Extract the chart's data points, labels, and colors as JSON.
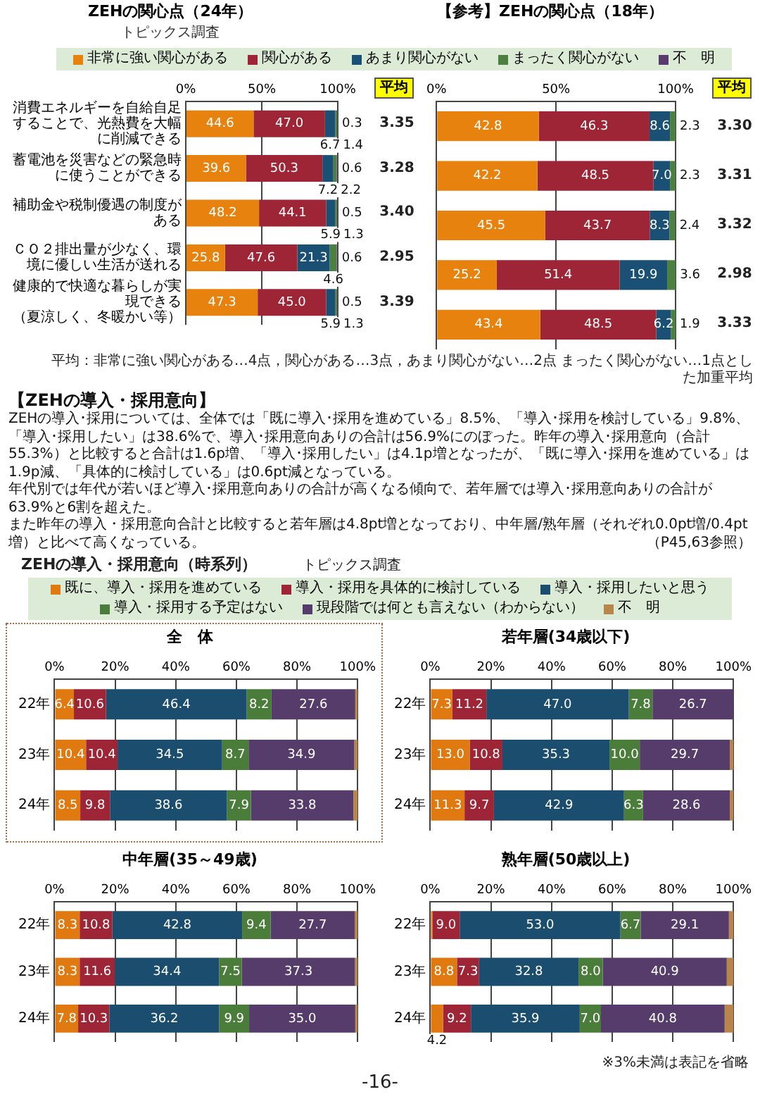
{
  "chart_data": [
    {
      "type": "bar",
      "orientation": "horizontal",
      "stacked": true,
      "title": "ZEHの関心点（24年）",
      "subtitle": "トピックス調査",
      "legend": "top",
      "grid": "x",
      "categories": [
        "消費エネルギーを自給自足することで、光熱費を大幅に削減できる",
        "蓄電池を災害などの緊急時に使うことができる",
        "補助金や税制優遇の制度がある",
        "ＣＯ２排出量が少なく、環境に優しい生活が送れる",
        "健康的で快適な暮らしが実現できる（夏涼しく、冬暖かい等）"
      ],
      "xlim": [
        0,
        100
      ],
      "xticks": [
        {
          "value": 0,
          "label": "0%"
        },
        {
          "value": 50,
          "label": "50%"
        },
        {
          "value": 100,
          "label": "100%"
        }
      ],
      "series": [
        {
          "name": "非常に強い関心がある",
          "color": "#e8820e",
          "values": [
            44.6,
            39.6,
            48.2,
            25.8,
            47.3
          ],
          "value_labels": [
            "44.6",
            "39.6",
            "48.2",
            "25.8",
            "47.3"
          ]
        },
        {
          "name": "関心がある",
          "color": "#9e2536",
          "values": [
            47.0,
            50.3,
            44.1,
            47.6,
            45.0
          ],
          "value_labels": [
            "47.0",
            "50.3",
            "44.1",
            "47.6",
            "45.0"
          ]
        },
        {
          "name": "あまり関心がない",
          "color": "#1b5075",
          "values": [
            6.7,
            7.2,
            5.9,
            21.3,
            5.9
          ],
          "value_labels": [
            "6.7",
            "7.2",
            "5.9",
            "21.3",
            "5.9"
          ]
        },
        {
          "name": "まったく関心がない",
          "color": "#4b8040",
          "values": [
            1.4,
            2.2,
            1.3,
            4.6,
            1.3
          ],
          "value_labels": [
            "1.4",
            "2.2",
            "1.3",
            "4.6",
            "1.3"
          ]
        },
        {
          "name": "不　明",
          "color": "#5b3a6e",
          "values": [
            0.3,
            0.6,
            0.5,
            0.6,
            0.5
          ],
          "value_labels": [
            "0.3",
            "0.6",
            "0.5",
            "0.6",
            "0.5"
          ]
        }
      ],
      "annotations": [
        "平均",
        "3.35",
        "3.28",
        "3.40",
        "2.95",
        "3.39"
      ]
    },
    {
      "type": "bar",
      "orientation": "horizontal",
      "stacked": true,
      "title": "【参考】ZEHの関心点（18年）",
      "grid": "x",
      "tick_labels": "x",
      "categories": [
        "消費エネルギーを自給自足することで、光熱費を大幅に削減できる",
        "蓄電池を災害などの緊急時に使うことができる",
        "補助金や税制優遇の制度がある",
        "ＣＯ２排出量が少なく、環境に優しい生活が送れる",
        "健康的で快適な暮らしが実現できる（夏涼しく、冬暖かい等）"
      ],
      "xlim": [
        0,
        100
      ],
      "xticks": [
        {
          "value": 0,
          "label": "0%"
        },
        {
          "value": 50,
          "label": "50%"
        },
        {
          "value": 100,
          "label": "100%"
        }
      ],
      "series": [
        {
          "color": "#e8820e",
          "values": [
            42.8,
            42.2,
            45.5,
            25.2,
            43.4
          ],
          "value_labels": [
            "42.8",
            "42.2",
            "45.5",
            "25.2",
            "43.4"
          ]
        },
        {
          "color": "#9e2536",
          "values": [
            46.3,
            48.5,
            43.7,
            51.4,
            48.5
          ],
          "value_labels": [
            "46.3",
            "48.5",
            "43.7",
            "51.4",
            "48.5"
          ]
        },
        {
          "color": "#1b5075",
          "values": [
            8.6,
            7.0,
            8.3,
            19.9,
            6.2
          ],
          "value_labels": [
            "8.6",
            "7.0",
            "8.3",
            "19.9",
            "6.2"
          ]
        },
        {
          "color": "#4b8040",
          "values": [
            2.3,
            2.3,
            2.4,
            3.6,
            1.9
          ],
          "value_labels": [
            "2.3",
            "2.3",
            "2.4",
            "3.6",
            "1.9"
          ]
        }
      ],
      "annotations": [
        "平均",
        "3.30",
        "3.31",
        "3.32",
        "2.98",
        "3.33",
        "平均：非常に強い関心がある…4点，関心がある…3点，あまり関心がない…2点 まったく関心がない…1点とした加重平均"
      ]
    },
    {
      "type": "other",
      "title": "【ZEHの導入・採用意向】",
      "annotations": [
        "ZEHの導入･採用については、全体では「既に導入･採用を進めている」8.5%、「導入･採用を検討している」9.8%、「導入･採用したい」は38.6%で、導入･採用意向ありの合計は56.9%にのぼった。昨年の導入･採用意向（合計55.3%）と比較すると合計は1.6p増、「導入･採用したい」は4.1p増となったが、「既に導入･採用を進めている」は1.9p減、「具体的に検討している」は0.6pt減となっている。",
        "年代別では年代が若いほど導入･採用意向ありの合計が高くなる傾向で、若年層では導入･採用意向ありの合計が63.9%と6割を超えた。",
        "また昨年の導入・採用意向合計と比較すると若年層は4.8pt増となっており、中年層/熟年層（それぞれ0.0pt増/0.4pt増）と比べて高くなっている。",
        "（P45,63参照）"
      ]
    },
    {
      "type": "bar",
      "orientation": "horizontal",
      "stacked": true,
      "title": "全　体",
      "legend": "top",
      "grid": "x",
      "categories": [
        "22年",
        "23年",
        "24年"
      ],
      "xlim": [
        0,
        100
      ],
      "xticks": [
        {
          "value": 0,
          "label": "0%"
        },
        {
          "value": 20,
          "label": "20%"
        },
        {
          "value": 40,
          "label": "40%"
        },
        {
          "value": 60,
          "label": "60%"
        },
        {
          "value": 80,
          "label": "80%"
        },
        {
          "value": 100,
          "label": "100%"
        }
      ],
      "series": [
        {
          "name": "既に、導入・採用を進めている",
          "color": "#e07a10",
          "values": [
            6.4,
            10.4,
            8.5
          ],
          "value_labels": [
            "6.4",
            "10.4",
            "8.5"
          ]
        },
        {
          "name": "導入・採用を具体的に検討している",
          "color": "#9e2536",
          "values": [
            10.6,
            10.4,
            9.8
          ],
          "value_labels": [
            "10.6",
            "10.4",
            "9.8"
          ]
        },
        {
          "name": "導入・採用したいと思う",
          "color": "#1b4d6e",
          "values": [
            46.4,
            34.5,
            38.6
          ],
          "value_labels": [
            "46.4",
            "34.5",
            "38.6"
          ]
        },
        {
          "name": "導入・採用する予定はない",
          "color": "#4b7d3a",
          "values": [
            8.2,
            8.7,
            7.9
          ],
          "value_labels": [
            "8.2",
            "8.7",
            "7.9"
          ]
        },
        {
          "name": "現段階では何とも言えない（わからない）",
          "color": "#553c6a",
          "values": [
            27.6,
            34.9,
            33.8
          ],
          "value_labels": [
            "27.6",
            "34.9",
            "33.8"
          ]
        },
        {
          "name": "不　明",
          "color": "#b8864b",
          "values": [
            0.8,
            1.1,
            1.4
          ],
          "value_labels": [
            null,
            null,
            null
          ]
        }
      ],
      "annotations": [
        "ZEHの導入・採用意向（時系列）",
        "トピックス調査"
      ]
    },
    {
      "type": "bar",
      "orientation": "horizontal",
      "stacked": true,
      "title": "若年層(34歳以下)",
      "grid": "x",
      "categories": [
        "22年",
        "23年",
        "24年"
      ],
      "xlim": [
        0,
        100
      ],
      "xticks": [
        {
          "value": 0,
          "label": "0%"
        },
        {
          "value": 20,
          "label": "20%"
        },
        {
          "value": 40,
          "label": "40%"
        },
        {
          "value": 60,
          "label": "60%"
        },
        {
          "value": 80,
          "label": "80%"
        },
        {
          "value": 100,
          "label": "100%"
        }
      ],
      "series": [
        {
          "color": "#e07a10",
          "values": [
            7.3,
            13.0,
            11.3
          ],
          "value_labels": [
            "7.3",
            "13.0",
            "11.3"
          ]
        },
        {
          "color": "#9e2536",
          "values": [
            11.2,
            10.8,
            9.7
          ],
          "value_labels": [
            "11.2",
            "10.8",
            "9.7"
          ]
        },
        {
          "color": "#1b4d6e",
          "values": [
            47.0,
            35.3,
            42.9
          ],
          "value_labels": [
            "47.0",
            "35.3",
            "42.9"
          ]
        },
        {
          "color": "#4b7d3a",
          "values": [
            7.8,
            10.0,
            6.3
          ],
          "value_labels": [
            "7.8",
            "10.0",
            "6.3"
          ]
        },
        {
          "color": "#553c6a",
          "values": [
            26.7,
            29.7,
            28.6
          ],
          "value_labels": [
            "26.7",
            "29.7",
            "28.6"
          ]
        },
        {
          "color": "#b8864b",
          "values": [
            0,
            1.2,
            1.2
          ],
          "value_labels": [
            null,
            null,
            null
          ]
        }
      ]
    },
    {
      "type": "bar",
      "orientation": "horizontal",
      "stacked": true,
      "title": "中年層(35～49歳)",
      "grid": "x",
      "categories": [
        "22年",
        "23年",
        "24年"
      ],
      "xlim": [
        0,
        100
      ],
      "xticks": [
        {
          "value": 0,
          "label": "0%"
        },
        {
          "value": 20,
          "label": "20%"
        },
        {
          "value": 40,
          "label": "40%"
        },
        {
          "value": 60,
          "label": "60%"
        },
        {
          "value": 80,
          "label": "80%"
        },
        {
          "value": 100,
          "label": "100%"
        }
      ],
      "series": [
        {
          "color": "#e07a10",
          "values": [
            8.3,
            8.3,
            7.8
          ],
          "value_labels": [
            "8.3",
            "8.3",
            "7.8"
          ]
        },
        {
          "color": "#9e2536",
          "values": [
            10.8,
            11.6,
            10.3
          ],
          "value_labels": [
            "10.8",
            "11.6",
            "10.3"
          ]
        },
        {
          "color": "#1b4d6e",
          "values": [
            42.8,
            34.4,
            36.2
          ],
          "value_labels": [
            "42.8",
            "34.4",
            "36.2"
          ]
        },
        {
          "color": "#4b7d3a",
          "values": [
            9.4,
            7.5,
            9.9
          ],
          "value_labels": [
            "9.4",
            "7.5",
            "9.9"
          ]
        },
        {
          "color": "#553c6a",
          "values": [
            27.7,
            37.3,
            35.0
          ],
          "value_labels": [
            "27.7",
            "37.3",
            "35.0"
          ]
        },
        {
          "color": "#b8864b",
          "values": [
            1.0,
            0.9,
            0.8
          ],
          "value_labels": [
            null,
            null,
            null
          ]
        }
      ]
    },
    {
      "type": "bar",
      "orientation": "horizontal",
      "stacked": true,
      "title": "熟年層(50歳以上)",
      "grid": "x",
      "categories": [
        "22年",
        "23年",
        "24年"
      ],
      "xlim": [
        0,
        100
      ],
      "xticks": [
        {
          "value": 0,
          "label": "0%"
        },
        {
          "value": 20,
          "label": "20%"
        },
        {
          "value": 40,
          "label": "40%"
        },
        {
          "value": 60,
          "label": "60%"
        },
        {
          "value": 80,
          "label": "80%"
        },
        {
          "value": 100,
          "label": "100%"
        }
      ],
      "series": [
        {
          "color": "#e07a10",
          "values": [
            0.7,
            8.8,
            4.2
          ],
          "value_labels": [
            null,
            "8.8",
            "4.2"
          ]
        },
        {
          "color": "#9e2536",
          "values": [
            9.0,
            7.3,
            9.2
          ],
          "value_labels": [
            "9.0",
            "7.3",
            "9.2"
          ]
        },
        {
          "color": "#1b4d6e",
          "values": [
            53.0,
            32.8,
            35.9
          ],
          "value_labels": [
            "53.0",
            "32.8",
            "35.9"
          ]
        },
        {
          "color": "#4b7d3a",
          "values": [
            6.7,
            8.0,
            7.0
          ],
          "value_labels": [
            "6.7",
            "8.0",
            "7.0"
          ]
        },
        {
          "color": "#553c6a",
          "values": [
            29.1,
            40.9,
            40.8
          ],
          "value_labels": [
            "29.1",
            "40.9",
            "40.8"
          ]
        },
        {
          "color": "#b8864b",
          "values": [
            1.5,
            2.2,
            2.9
          ],
          "value_labels": [
            null,
            null,
            null
          ]
        }
      ],
      "annotations": [
        "※3%未満は表記を省略",
        "-16-"
      ]
    }
  ]
}
